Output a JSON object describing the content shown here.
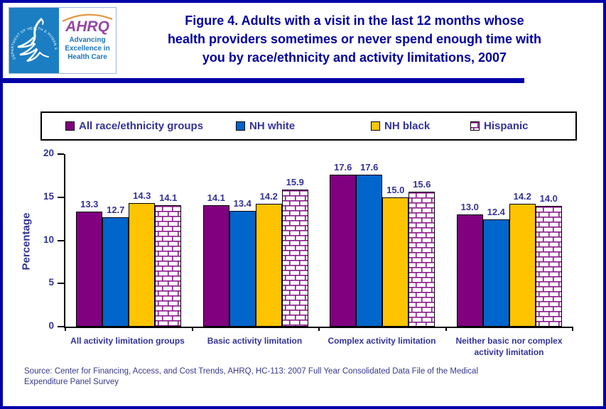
{
  "header": {
    "logo": {
      "hhs_ring_text": "DEPARTMENT OF HEALTH & HUMAN SERVICES · USA",
      "ahrq_acronym": "AHRQ",
      "ahrq_tagline": "Advancing Excellence in Health Care"
    },
    "title_lines": [
      "Figure 4. Adults with a visit in the last 12 months whose",
      "health providers sometimes or never spend enough time with",
      "you by race/ethnicity and activity limitations, 2007"
    ]
  },
  "chart_data": {
    "type": "bar",
    "title": "Figure 4. Adults with a visit in the last 12 months whose health providers sometimes or never spend enough time with you by race/ethnicity and activity limitations, 2007",
    "xlabel": "",
    "ylabel": "Percentage",
    "ylim": [
      0,
      20
    ],
    "yticks": [
      0,
      5,
      10,
      15,
      20
    ],
    "grid": false,
    "legend_position": "top",
    "bar_value_labels": true,
    "categories": [
      "All activity limitation groups",
      "Basic activity limitation",
      "Complex activity limitation",
      "Neither basic nor complex activity limitation"
    ],
    "series": [
      {
        "name": "All race/ethnicity groups",
        "color": "#800080",
        "pattern": "solid",
        "values": [
          13.3,
          14.1,
          17.6,
          13.0
        ]
      },
      {
        "name": "NH white",
        "color": "#0066CC",
        "pattern": "solid",
        "values": [
          12.7,
          13.4,
          17.6,
          12.4
        ]
      },
      {
        "name": "NH black",
        "color": "#FFC400",
        "pattern": "solid",
        "values": [
          14.3,
          14.2,
          15.0,
          14.2
        ]
      },
      {
        "name": "Hispanic",
        "color": "#8B1A8B",
        "pattern": "brick",
        "values": [
          14.1,
          15.9,
          15.6,
          14.0
        ]
      }
    ]
  },
  "footer": {
    "source": "Source: Center for Financing, Access, and Cost Trends, AHRQ, HC-113: 2007 Full Year Consolidated Data File of the Medical Expenditure Panel Survey"
  },
  "colors": {
    "page_border": "#0000A8",
    "title_text": "#0000A0",
    "chart_text": "#333399",
    "hhs_blue": "#1B7EC2",
    "ahrq_purple": "#94489F",
    "ahrq_blue": "#1B75BC",
    "arc_orange": "#E39B4B"
  }
}
